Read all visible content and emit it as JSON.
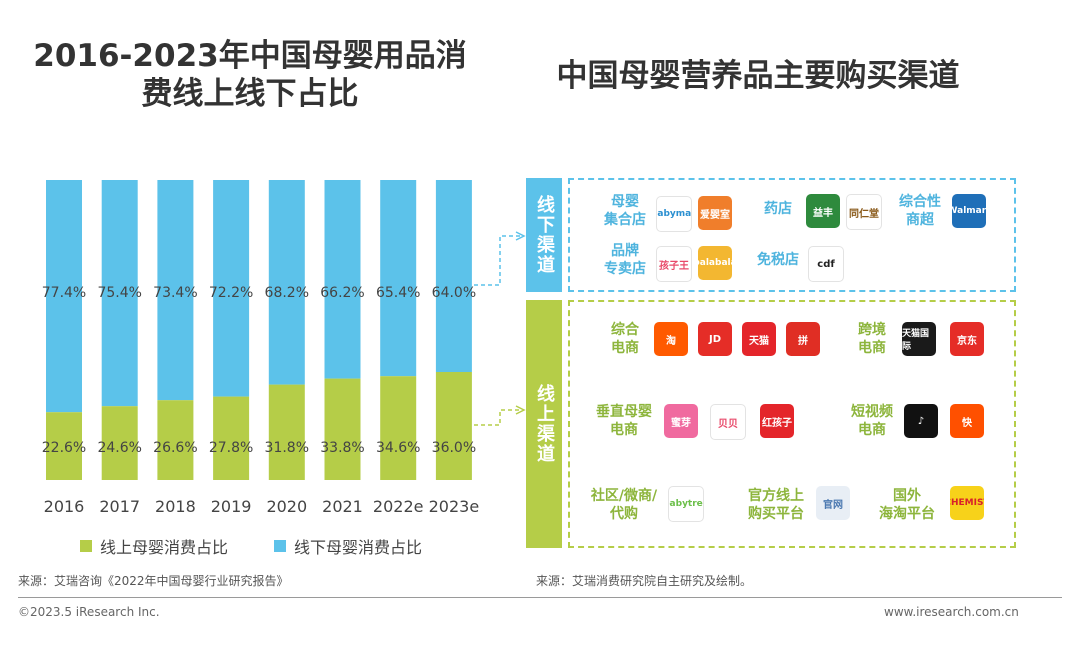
{
  "titles": {
    "left": "2016-2023年中国母婴用品消费线上线下占比",
    "right": "中国母婴营养品主要购买渠道"
  },
  "colors": {
    "online": "#b5cd48",
    "offline": "#5cc2ea",
    "online_text": "#8db53c",
    "offline_text": "#4fb4de"
  },
  "chart_data": {
    "type": "bar",
    "stacked": true,
    "percent": true,
    "categories": [
      "2016",
      "2017",
      "2018",
      "2019",
      "2020",
      "2021",
      "2022e",
      "2023e"
    ],
    "series": [
      {
        "name": "线上母婴消费占比",
        "values": [
          22.6,
          24.6,
          26.6,
          27.8,
          31.8,
          33.8,
          34.6,
          36.0
        ],
        "labels": [
          "22.6%",
          "24.6%",
          "26.6%",
          "27.8%",
          "31.8%",
          "33.8%",
          "34.6%",
          "36.0%"
        ]
      },
      {
        "name": "线下母婴消费占比",
        "values": [
          77.4,
          75.4,
          73.4,
          72.2,
          68.2,
          66.2,
          65.4,
          64.0
        ],
        "labels": [
          "77.4%",
          "75.4%",
          "73.4%",
          "72.2%",
          "68.2%",
          "66.2%",
          "65.4%",
          "64.0%"
        ]
      }
    ],
    "ylim": [
      0,
      100
    ],
    "grid": false,
    "legend_position": "bottom"
  },
  "legend": {
    "online": "线上母婴消费占比",
    "offline": "线下母婴消费占比"
  },
  "channels": {
    "offline_tab": "线下渠道",
    "online_tab": "线上渠道",
    "offline_categories": [
      {
        "label": "母婴\n集合店",
        "logos": [
          {
            "name": "babymax",
            "text": "babymax",
            "color": "#ffffff",
            "fg": "#2a8fd0"
          },
          {
            "name": "aiyingshi",
            "text": "爱婴室",
            "color": "#f07e2b",
            "fg": "#fff"
          }
        ]
      },
      {
        "label": "药店",
        "logos": [
          {
            "name": "yifeng",
            "text": "益丰",
            "color": "#2e8a3d",
            "fg": "#fff"
          },
          {
            "name": "tongrentang",
            "text": "同仁堂",
            "color": "#ffffff",
            "fg": "#8a5a1a"
          }
        ]
      },
      {
        "label": "综合性\n商超",
        "logos": [
          {
            "name": "walmart",
            "text": "Walmart",
            "color": "#1f6fb8",
            "fg": "#fff"
          }
        ]
      },
      {
        "label": "品牌\n专卖店",
        "logos": [
          {
            "name": "kidswant",
            "text": "孩子王",
            "color": "#ffffff",
            "fg": "#e84a6a"
          },
          {
            "name": "balabala",
            "text": "balabala",
            "color": "#f3b731",
            "fg": "#fff"
          }
        ]
      },
      {
        "label": "免税店",
        "logos": [
          {
            "name": "cdf",
            "text": "cdf",
            "color": "#ffffff",
            "fg": "#222"
          }
        ]
      }
    ],
    "online_categories": [
      {
        "label": "综合\n电商",
        "logos": [
          {
            "name": "taobao",
            "text": "淘",
            "color": "#ff5a00",
            "fg": "#fff"
          },
          {
            "name": "jd",
            "text": "JD",
            "color": "#e52d27",
            "fg": "#fff"
          },
          {
            "name": "tmall",
            "text": "天猫",
            "color": "#e4252a",
            "fg": "#fff"
          },
          {
            "name": "pinduoduo",
            "text": "拼",
            "color": "#e02e24",
            "fg": "#fff"
          }
        ]
      },
      {
        "label": "跨境\n电商",
        "logos": [
          {
            "name": "tmall-global",
            "text": "天猫国际",
            "color": "#1a1a1a",
            "fg": "#fff"
          },
          {
            "name": "jd-global",
            "text": "京东",
            "color": "#e52d27",
            "fg": "#fff"
          }
        ]
      },
      {
        "label": "垂直母婴\n电商",
        "logos": [
          {
            "name": "mia",
            "text": "蜜芽",
            "color": "#f06a9f",
            "fg": "#fff"
          },
          {
            "name": "beibei",
            "text": "贝贝",
            "color": "#ffffff",
            "fg": "#e84a6a"
          },
          {
            "name": "redbaby",
            "text": "红孩子",
            "color": "#e4252a",
            "fg": "#fff"
          }
        ]
      },
      {
        "label": "短视频\n电商",
        "logos": [
          {
            "name": "douyin",
            "text": "♪",
            "color": "#111111",
            "fg": "#fff"
          },
          {
            "name": "kuaishou",
            "text": "快",
            "color": "#ff5000",
            "fg": "#fff"
          }
        ]
      },
      {
        "label": "社区/微商/\n代购",
        "logos": [
          {
            "name": "babytree",
            "text": "babytree",
            "color": "#ffffff",
            "fg": "#6cbf4a"
          }
        ]
      },
      {
        "label": "官方线上\n购买平台",
        "logos": [
          {
            "name": "official-site",
            "text": "官网",
            "color": "#e8eef5",
            "fg": "#4a78b0"
          }
        ]
      },
      {
        "label": "国外\n海淘平台",
        "logos": [
          {
            "name": "chemist-warehouse",
            "text": "CHEMIST",
            "color": "#f7d21a",
            "fg": "#d8202a"
          }
        ]
      }
    ]
  },
  "sources": {
    "left": "来源：艾瑞咨询《2022年中国母婴行业研究报告》",
    "right": "来源：艾瑞消费研究院自主研究及绘制。"
  },
  "footer": {
    "copyright": "©2023.5 iResearch Inc.",
    "website": "www.iresearch.com.cn"
  }
}
